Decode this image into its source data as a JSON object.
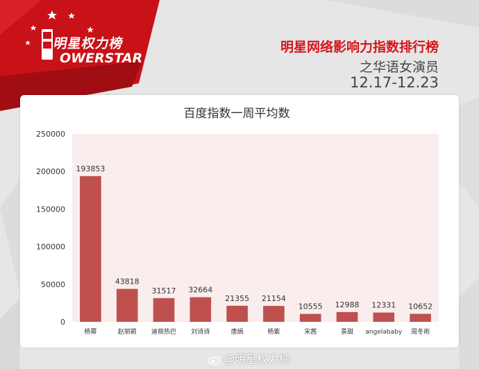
{
  "brand": {
    "logo_cn": "明星权力榜",
    "logo_en": "OWERSTAR",
    "logo_mark": "P"
  },
  "header": {
    "title": "明星网络影响力指数排行榜",
    "subtitle": "之华语女演员",
    "date_range": "12.17-12.23"
  },
  "watermark": "@明星权力榜",
  "colors": {
    "brand_red": "#d6161c",
    "bar": "#c0504d",
    "plot_bg": "#f9eded"
  },
  "chart_data": {
    "type": "bar",
    "title": "百度指数一周平均数",
    "categories": [
      "杨幂",
      "赵丽颖",
      "迪丽热巴",
      "刘诗诗",
      "唐嫣",
      "杨紫",
      "宋茜",
      "景甜",
      "angelababy",
      "周冬雨"
    ],
    "values": [
      193853,
      43818,
      31517,
      32664,
      21355,
      21154,
      10555,
      12988,
      12331,
      10652
    ],
    "ylim": [
      0,
      250000
    ],
    "yticks": [
      0,
      50000,
      100000,
      150000,
      200000,
      250000
    ],
    "xlabel": "",
    "ylabel": "",
    "grid": false,
    "data_labels": true
  }
}
